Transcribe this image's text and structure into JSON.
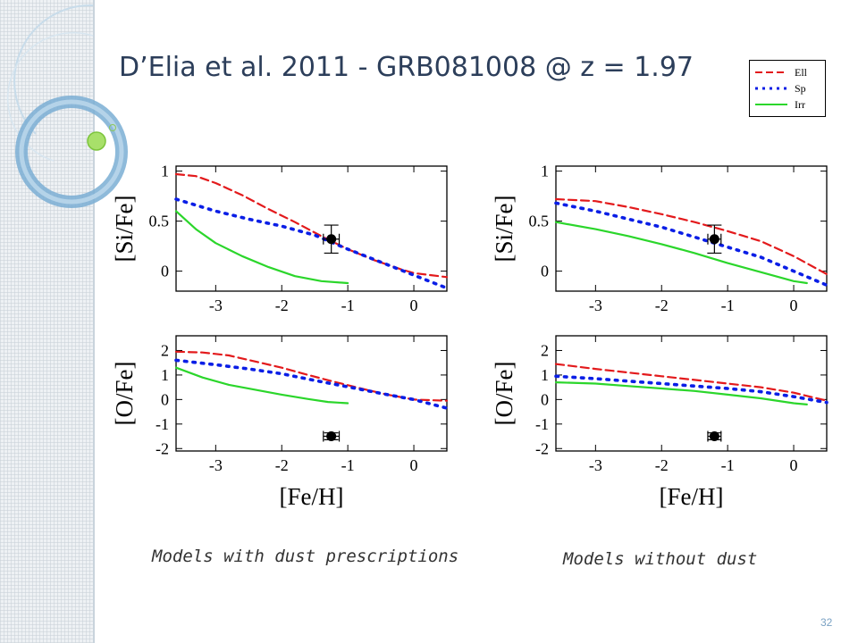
{
  "slide": {
    "title": "D’Elia et al. 2011 - GRB081008 @ z = 1.97",
    "page_number": "32",
    "caption_left": "Models with dust prescriptions",
    "caption_right": "Models without dust"
  },
  "colors": {
    "ell": "#e31a1c",
    "sp": "#0a1ee6",
    "irr": "#2bd62b",
    "title": "#2c3e5a"
  },
  "legend": [
    {
      "label": "Ell",
      "style": "dashed",
      "color": "#e31a1c"
    },
    {
      "label": "Sp",
      "style": "dotted",
      "color": "#0a1ee6"
    },
    {
      "label": "Irr",
      "style": "solid",
      "color": "#2bd62b"
    }
  ],
  "chart_data": [
    {
      "type": "line",
      "panel": "with-dust-si",
      "ylabel": "[Si/Fe]",
      "xlabel": "",
      "xlim": [
        -3.6,
        0.5
      ],
      "ylim": [
        -0.2,
        1.05
      ],
      "xticks": [
        "-3",
        "-2",
        "-1",
        "0"
      ],
      "yticks": [
        "0",
        "0.5",
        "1"
      ],
      "series": [
        {
          "name": "Ell",
          "x": [
            -3.6,
            -3.3,
            -3.0,
            -2.6,
            -2.2,
            -1.8,
            -1.4,
            -1.0,
            -0.6,
            -0.2,
            0.0,
            0.5
          ],
          "y": [
            0.97,
            0.95,
            0.88,
            0.76,
            0.62,
            0.49,
            0.35,
            0.22,
            0.11,
            0.02,
            -0.02,
            -0.06
          ]
        },
        {
          "name": "Sp",
          "x": [
            -3.6,
            -3.0,
            -2.5,
            -2.0,
            -1.5,
            -1.0,
            -0.5,
            0.0,
            0.5
          ],
          "y": [
            0.72,
            0.6,
            0.52,
            0.45,
            0.36,
            0.22,
            0.09,
            -0.04,
            -0.17
          ]
        },
        {
          "name": "Irr",
          "x": [
            -3.6,
            -3.3,
            -3.0,
            -2.6,
            -2.2,
            -1.8,
            -1.4,
            -1.0
          ],
          "y": [
            0.6,
            0.42,
            0.28,
            0.15,
            0.04,
            -0.05,
            -0.1,
            -0.12
          ]
        }
      ],
      "observation": {
        "x": -1.25,
        "y": 0.32,
        "yerr": 0.14,
        "xerr": 0.12
      }
    },
    {
      "type": "line",
      "panel": "with-dust-o",
      "ylabel": "[O/Fe]",
      "xlabel": "[Fe/H]",
      "xlim": [
        -3.6,
        0.5
      ],
      "ylim": [
        -2.1,
        2.6
      ],
      "xticks": [
        "-3",
        "-2",
        "-1",
        "0"
      ],
      "yticks": [
        "-2",
        "-1",
        "0",
        "1",
        "2"
      ],
      "series": [
        {
          "name": "Ell",
          "x": [
            -3.6,
            -3.2,
            -2.8,
            -2.4,
            -2.0,
            -1.6,
            -1.2,
            -0.8,
            -0.4,
            0.0,
            0.5
          ],
          "y": [
            1.95,
            1.92,
            1.8,
            1.55,
            1.3,
            1.0,
            0.72,
            0.45,
            0.2,
            0.0,
            -0.05
          ]
        },
        {
          "name": "Sp",
          "x": [
            -3.6,
            -3.0,
            -2.5,
            -2.0,
            -1.5,
            -1.0,
            -0.5,
            0.0,
            0.5
          ],
          "y": [
            1.6,
            1.42,
            1.25,
            1.05,
            0.78,
            0.52,
            0.25,
            0.0,
            -0.35
          ]
        },
        {
          "name": "Irr",
          "x": [
            -3.6,
            -3.2,
            -2.8,
            -2.4,
            -2.0,
            -1.6,
            -1.3,
            -1.0
          ],
          "y": [
            1.3,
            0.9,
            0.6,
            0.4,
            0.2,
            0.02,
            -0.1,
            -0.15
          ]
        }
      ],
      "observation": {
        "x": -1.25,
        "y": -1.5,
        "yerr": 0.14,
        "xerr": 0.12
      }
    },
    {
      "type": "line",
      "panel": "without-dust-si",
      "ylabel": "[Si/Fe]",
      "xlabel": "",
      "xlim": [
        -3.6,
        0.5
      ],
      "ylim": [
        -0.2,
        1.05
      ],
      "xticks": [
        "-3",
        "-2",
        "-1",
        "0"
      ],
      "yticks": [
        "0",
        "0.5",
        "1"
      ],
      "series": [
        {
          "name": "Ell",
          "x": [
            -3.6,
            -3.0,
            -2.5,
            -2.0,
            -1.5,
            -1.0,
            -0.5,
            0.0,
            0.5
          ],
          "y": [
            0.72,
            0.7,
            0.64,
            0.57,
            0.49,
            0.4,
            0.3,
            0.15,
            -0.03
          ]
        },
        {
          "name": "Sp",
          "x": [
            -3.6,
            -3.0,
            -2.5,
            -2.0,
            -1.5,
            -1.0,
            -0.5,
            0.0,
            0.5
          ],
          "y": [
            0.68,
            0.6,
            0.52,
            0.44,
            0.34,
            0.24,
            0.14,
            0.0,
            -0.14
          ]
        },
        {
          "name": "Irr",
          "x": [
            -3.6,
            -3.0,
            -2.5,
            -2.0,
            -1.5,
            -1.0,
            -0.5,
            0.0,
            0.2
          ],
          "y": [
            0.49,
            0.42,
            0.35,
            0.27,
            0.18,
            0.08,
            -0.01,
            -0.1,
            -0.12
          ]
        }
      ],
      "observation": {
        "x": -1.2,
        "y": 0.32,
        "yerr": 0.14,
        "xerr": 0.1
      }
    },
    {
      "type": "line",
      "panel": "without-dust-o",
      "ylabel": "[O/Fe]",
      "xlabel": "[Fe/H]",
      "xlim": [
        -3.6,
        0.5
      ],
      "ylim": [
        -2.1,
        2.6
      ],
      "xticks": [
        "-3",
        "-2",
        "-1",
        "0"
      ],
      "yticks": [
        "-2",
        "-1",
        "0",
        "1",
        "2"
      ],
      "series": [
        {
          "name": "Ell",
          "x": [
            -3.6,
            -3.0,
            -2.5,
            -2.0,
            -1.5,
            -1.0,
            -0.5,
            0.0,
            0.5
          ],
          "y": [
            1.45,
            1.25,
            1.1,
            0.95,
            0.8,
            0.65,
            0.5,
            0.28,
            -0.05
          ]
        },
        {
          "name": "Sp",
          "x": [
            -3.6,
            -3.0,
            -2.5,
            -2.0,
            -1.5,
            -1.0,
            -0.5,
            0.0,
            0.5
          ],
          "y": [
            0.95,
            0.85,
            0.75,
            0.65,
            0.55,
            0.45,
            0.32,
            0.12,
            -0.12
          ]
        },
        {
          "name": "Irr",
          "x": [
            -3.6,
            -3.0,
            -2.5,
            -2.0,
            -1.5,
            -1.0,
            -0.5,
            0.0,
            0.2
          ],
          "y": [
            0.7,
            0.65,
            0.55,
            0.45,
            0.35,
            0.2,
            0.05,
            -0.15,
            -0.2
          ]
        }
      ],
      "observation": {
        "x": -1.2,
        "y": -1.5,
        "yerr": 0.14,
        "xerr": 0.1
      }
    }
  ]
}
